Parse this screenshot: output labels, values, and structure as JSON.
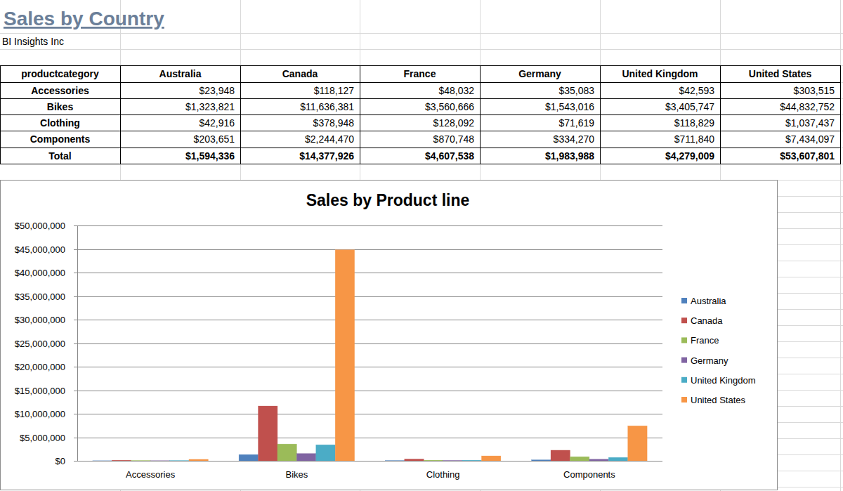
{
  "header": {
    "title": "Sales by Country",
    "subtitle": "BI Insights Inc"
  },
  "table": {
    "header": [
      "productcategory",
      "Australia",
      "Canada",
      "France",
      "Germany",
      "United Kingdom",
      "United States"
    ],
    "rows": [
      [
        "Accessories",
        "$23,948",
        "$118,127",
        "$48,032",
        "$35,083",
        "$42,593",
        "$303,515"
      ],
      [
        "Bikes",
        "$1,323,821",
        "$11,636,381",
        "$3,560,666",
        "$1,543,016",
        "$3,405,747",
        "$44,832,752"
      ],
      [
        "Clothing",
        "$42,916",
        "$378,948",
        "$128,092",
        "$71,619",
        "$118,829",
        "$1,037,437"
      ],
      [
        "Components",
        "$203,651",
        "$2,244,470",
        "$870,748",
        "$334,270",
        "$711,840",
        "$7,434,097"
      ],
      [
        "Total",
        "$1,594,336",
        "$14,377,926",
        "$4,607,538",
        "$1,983,988",
        "$4,279,009",
        "$53,607,801"
      ]
    ]
  },
  "chart_data": {
    "type": "bar",
    "title": "Sales by Product line",
    "categories": [
      "Accessories",
      "Bikes",
      "Clothing",
      "Components"
    ],
    "series": [
      {
        "name": "Australia",
        "color": "#4f81bd",
        "values": [
          23948,
          1323821,
          42916,
          203651
        ]
      },
      {
        "name": "Canada",
        "color": "#c0504d",
        "values": [
          118127,
          11636381,
          378948,
          2244470
        ]
      },
      {
        "name": "France",
        "color": "#9bbb59",
        "values": [
          48032,
          3560666,
          128092,
          870748
        ]
      },
      {
        "name": "Germany",
        "color": "#8064a2",
        "values": [
          35083,
          1543016,
          71619,
          334270
        ]
      },
      {
        "name": "United Kingdom",
        "color": "#4bacc6",
        "values": [
          42593,
          3405747,
          118829,
          711840
        ]
      },
      {
        "name": "United States",
        "color": "#f79646",
        "values": [
          303515,
          44832752,
          1037437,
          7434097
        ]
      }
    ],
    "ylim": [
      0,
      50000000
    ],
    "yticks": [
      {
        "value": 0,
        "label": "$0"
      },
      {
        "value": 5000000,
        "label": "$5,000,000"
      },
      {
        "value": 10000000,
        "label": "$10,000,000"
      },
      {
        "value": 15000000,
        "label": "$15,000,000"
      },
      {
        "value": 20000000,
        "label": "$20,000,000"
      },
      {
        "value": 25000000,
        "label": "$25,000,000"
      },
      {
        "value": 30000000,
        "label": "$30,000,000"
      },
      {
        "value": 35000000,
        "label": "$35,000,000"
      },
      {
        "value": 40000000,
        "label": "$40,000,000"
      },
      {
        "value": 45000000,
        "label": "$45,000,000"
      },
      {
        "value": 50000000,
        "label": "$50,000,000"
      }
    ],
    "grid": true,
    "legend": "right"
  }
}
